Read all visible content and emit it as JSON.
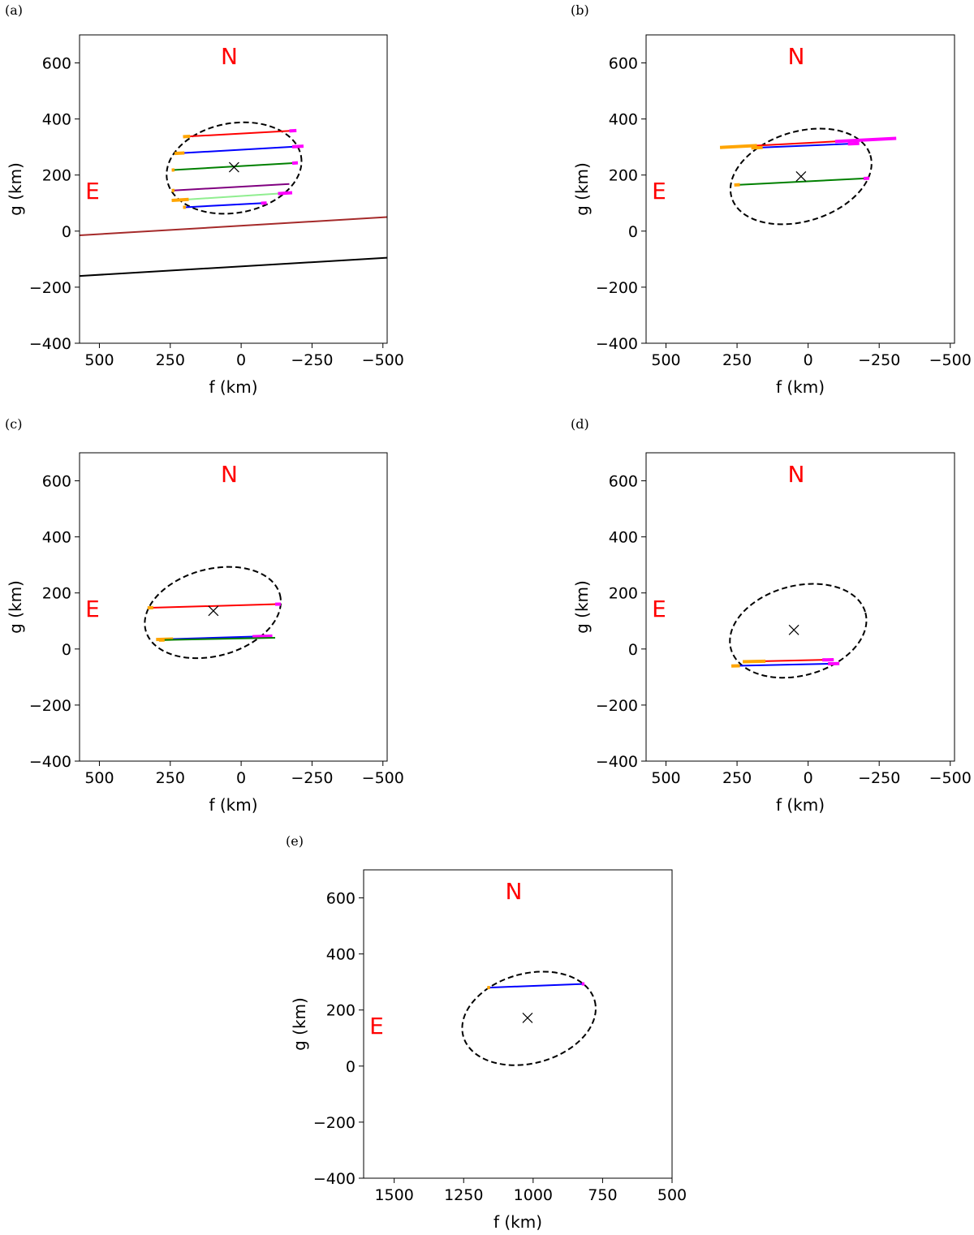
{
  "colors": {
    "north_label": "#ff0000",
    "east_label": "#ff0000",
    "ingress_error": "#ffa500",
    "egress_error": "#ff00ff",
    "ellipse": "#000000"
  },
  "chart_data": [
    {
      "type": "line",
      "panel_label": "(a)",
      "xlabel": "f (km)",
      "ylabel": "g (km)",
      "xlim": [
        570,
        -515
      ],
      "ylim": [
        -400,
        700
      ],
      "xticks": [
        500,
        250,
        0,
        -250,
        -500
      ],
      "xtick_labels": [
        "500",
        "250",
        "0",
        "−250",
        "−500"
      ],
      "yticks": [
        -400,
        -200,
        0,
        200,
        400,
        600
      ],
      "ytick_labels": [
        "−400",
        "−200",
        "0",
        "200",
        "400",
        "600"
      ],
      "north_label": "N",
      "east_label": "E",
      "ellipse": {
        "center": [
          25,
          225
        ],
        "a": 240,
        "b": 160,
        "angle_deg": 10
      },
      "center_marker": [
        25,
        228
      ],
      "chords": [
        {
          "color": "#ff0000",
          "x": [
            180,
            -180
          ],
          "y": [
            338,
            358
          ],
          "ingress_err": [
            [
              205,
              180
            ]
          ],
          "egress_err": [
            [
              -170,
              -195
            ]
          ]
        },
        {
          "color": "#0000ff",
          "x": [
            215,
            -200
          ],
          "y": [
            278,
            302
          ],
          "ingress_err": [
            [
              235,
              200
            ]
          ],
          "egress_err": [
            [
              -180,
              -220
            ]
          ]
        },
        {
          "color": "#008000",
          "x": [
            240,
            -190
          ],
          "y": [
            218,
            243
          ],
          "ingress_err": [
            [
              245,
              235
            ]
          ],
          "egress_err": [
            [
              -180,
              -200
            ]
          ]
        },
        {
          "color": "#800080",
          "x": [
            240,
            -170
          ],
          "y": [
            145,
            168
          ],
          "ingress_err": [
            [
              245,
              235
            ]
          ],
          "egress_err": []
        },
        {
          "color": "#90ee90",
          "x": [
            235,
            -150
          ],
          "y": [
            110,
            135
          ],
          "ingress_err": [
            [
              245,
              185
            ]
          ],
          "egress_err": [
            [
              -130,
              -180
            ]
          ]
        },
        {
          "color": "#0000ff",
          "x": [
            200,
            -80
          ],
          "y": [
            85,
            100
          ],
          "ingress_err": [
            [
              205,
              195
            ]
          ],
          "egress_err": [
            [
              -70,
              -90
            ]
          ]
        }
      ],
      "lines": [
        {
          "color": "#a52a2a",
          "x": [
            570,
            -515
          ],
          "y": [
            -15,
            50
          ]
        },
        {
          "color": "#000000",
          "x": [
            570,
            -515
          ],
          "y": [
            -160,
            -95
          ]
        }
      ]
    },
    {
      "type": "line",
      "panel_label": "(b)",
      "xlabel": "f (km)",
      "ylabel": "g (km)",
      "xlim": [
        570,
        -515
      ],
      "ylim": [
        -400,
        700
      ],
      "xticks": [
        500,
        250,
        0,
        -250,
        -500
      ],
      "xtick_labels": [
        "500",
        "250",
        "0",
        "−250",
        "−500"
      ],
      "yticks": [
        -400,
        -200,
        0,
        200,
        400,
        600
      ],
      "ytick_labels": [
        "−400",
        "−200",
        "0",
        "200",
        "400",
        "600"
      ],
      "north_label": "N",
      "east_label": "E",
      "ellipse": {
        "center": [
          25,
          195
        ],
        "a": 255,
        "b": 160,
        "angle_deg": 17
      },
      "center_marker": [
        25,
        195
      ],
      "chords": [
        {
          "color": "#ff0000",
          "x": [
            185,
            -100
          ],
          "y": [
            305,
            320
          ],
          "ingress_err": [
            [
              310,
              180
            ]
          ],
          "egress_err": [
            [
              -95,
              -310
            ]
          ]
        },
        {
          "color": "#0000ff",
          "x": [
            170,
            -160
          ],
          "y": [
            298,
            312
          ],
          "ingress_err": [
            [
              200,
              160
            ]
          ],
          "egress_err": [
            [
              -140,
              -180
            ]
          ]
        },
        {
          "color": "#008000",
          "x": [
            250,
            -200
          ],
          "y": [
            165,
            188
          ],
          "ingress_err": [
            [
              260,
              240
            ]
          ],
          "egress_err": [
            [
              -195,
              -215
            ]
          ]
        }
      ],
      "lines": []
    },
    {
      "type": "line",
      "panel_label": "(c)",
      "xlabel": "f (km)",
      "ylabel": "g (km)",
      "xlim": [
        570,
        -515
      ],
      "ylim": [
        -400,
        700
      ],
      "xticks": [
        500,
        250,
        0,
        -250,
        -500
      ],
      "xtick_labels": [
        "500",
        "250",
        "0",
        "−250",
        "−500"
      ],
      "yticks": [
        -400,
        -200,
        0,
        200,
        400,
        600
      ],
      "ytick_labels": [
        "−400",
        "−200",
        "0",
        "200",
        "400",
        "600"
      ],
      "north_label": "N",
      "east_label": "E",
      "ellipse": {
        "center": [
          100,
          130
        ],
        "a": 245,
        "b": 155,
        "angle_deg": 15
      },
      "center_marker": [
        98,
        136
      ],
      "chords": [
        {
          "color": "#ff0000",
          "x": [
            320,
            -130
          ],
          "y": [
            147,
            160
          ],
          "ingress_err": [
            [
              330,
              310
            ]
          ],
          "egress_err": [
            [
              -120,
              -140
            ]
          ]
        },
        {
          "color": "#0000ff",
          "x": [
            260,
            -70
          ],
          "y": [
            35,
            45
          ],
          "ingress_err": [
            [
              300,
              240
            ]
          ],
          "egress_err": [
            [
              -40,
              -110
            ]
          ]
        },
        {
          "color": "#008000",
          "x": [
            280,
            -120
          ],
          "y": [
            32,
            40
          ],
          "ingress_err": [
            [
              290,
              270
            ]
          ],
          "egress_err": []
        }
      ],
      "lines": []
    },
    {
      "type": "line",
      "panel_label": "(d)",
      "xlabel": "f (km)",
      "ylabel": "g (km)",
      "xlim": [
        570,
        -515
      ],
      "ylim": [
        -400,
        700
      ],
      "xticks": [
        500,
        250,
        0,
        -250,
        -500
      ],
      "xtick_labels": [
        "500",
        "250",
        "0",
        "−250",
        "−500"
      ],
      "yticks": [
        -400,
        -200,
        0,
        200,
        400,
        600
      ],
      "ytick_labels": [
        "−400",
        "−200",
        "0",
        "200",
        "400",
        "600"
      ],
      "north_label": "N",
      "east_label": "E",
      "ellipse": {
        "center": [
          35,
          65
        ],
        "a": 245,
        "b": 160,
        "angle_deg": 15
      },
      "center_marker": [
        50,
        68
      ],
      "chords": [
        {
          "color": "#ff0000",
          "x": [
            220,
            -90
          ],
          "y": [
            -45,
            -38
          ],
          "ingress_err": [
            [
              230,
              150
            ]
          ],
          "egress_err": [
            [
              -50,
              -90
            ]
          ]
        },
        {
          "color": "#0000ff",
          "x": [
            250,
            -100
          ],
          "y": [
            -60,
            -52
          ],
          "ingress_err": [
            [
              270,
              240
            ]
          ],
          "egress_err": [
            [
              -70,
              -110
            ]
          ]
        }
      ],
      "lines": []
    },
    {
      "type": "line",
      "panel_label": "(e)",
      "xlabel": "f (km)",
      "ylabel": "g (km)",
      "xlim": [
        1610,
        500
      ],
      "ylim": [
        -400,
        700
      ],
      "xticks": [
        1500,
        1250,
        1000,
        750,
        500
      ],
      "xtick_labels": [
        "1500",
        "1250",
        "1000",
        "750",
        "500"
      ],
      "yticks": [
        -400,
        -200,
        0,
        200,
        400,
        600
      ],
      "ytick_labels": [
        "−400",
        "−200",
        "0",
        "200",
        "400",
        "600"
      ],
      "north_label": "N",
      "east_label": "E",
      "ellipse": {
        "center": [
          1015,
          170
        ],
        "a": 245,
        "b": 160,
        "angle_deg": 15
      },
      "center_marker": [
        1020,
        172
      ],
      "chords": [
        {
          "color": "#0000ff",
          "x": [
            1160,
            820
          ],
          "y": [
            280,
            293
          ],
          "ingress_err": [
            [
              1165,
              1155
            ]
          ],
          "egress_err": [
            [
              825,
              815
            ]
          ]
        }
      ],
      "lines": []
    }
  ]
}
